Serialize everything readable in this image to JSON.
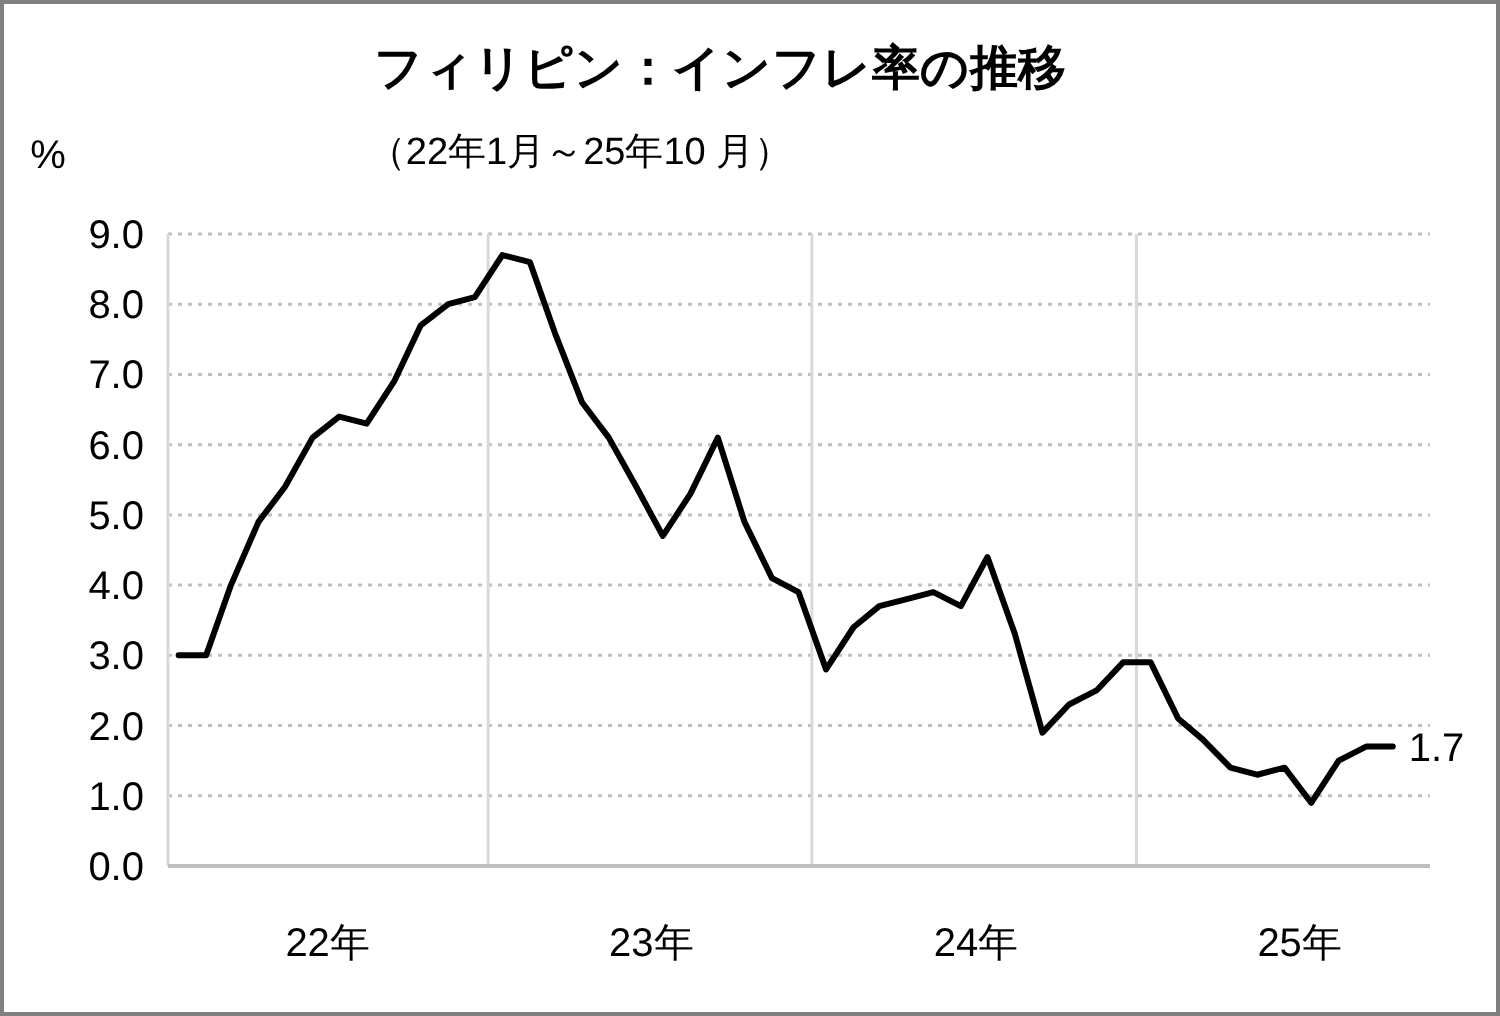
{
  "chart_data": {
    "type": "line",
    "title": "フィリピン：インフレ率の推移",
    "subtitle": "（22年1月～25年10 月）",
    "ylabel": "%",
    "x": [
      "2022-01",
      "2022-02",
      "2022-03",
      "2022-04",
      "2022-05",
      "2022-06",
      "2022-07",
      "2022-08",
      "2022-09",
      "2022-10",
      "2022-11",
      "2022-12",
      "2023-01",
      "2023-02",
      "2023-03",
      "2023-04",
      "2023-05",
      "2023-06",
      "2023-07",
      "2023-08",
      "2023-09",
      "2023-10",
      "2023-11",
      "2023-12",
      "2024-01",
      "2024-02",
      "2024-03",
      "2024-04",
      "2024-05",
      "2024-06",
      "2024-07",
      "2024-08",
      "2024-09",
      "2024-10",
      "2024-11",
      "2024-12",
      "2025-01",
      "2025-02",
      "2025-03",
      "2025-04",
      "2025-05",
      "2025-06",
      "2025-07",
      "2025-08",
      "2025-09",
      "2025-10"
    ],
    "series": [
      {
        "color": "#000000",
        "values": [
          3.0,
          3.0,
          4.0,
          4.9,
          5.4,
          6.1,
          6.4,
          6.3,
          6.9,
          7.7,
          8.0,
          8.1,
          8.7,
          8.6,
          7.6,
          6.6,
          6.1,
          5.4,
          4.7,
          5.3,
          6.1,
          4.9,
          4.1,
          3.9,
          2.8,
          3.4,
          3.7,
          3.8,
          3.9,
          3.7,
          4.4,
          3.3,
          1.9,
          2.3,
          2.5,
          2.9,
          2.9,
          2.1,
          1.8,
          1.4,
          1.3,
          1.4,
          0.9,
          1.5,
          1.7,
          1.7
        ]
      }
    ],
    "xlim": [
      "2021-12-20",
      "2025-11-12"
    ],
    "xticks": [
      {
        "value": "2022-06-18",
        "label": "22年"
      },
      {
        "value": "2023-06-18",
        "label": "23年"
      },
      {
        "value": "2024-06-18",
        "label": "24年"
      },
      {
        "value": "2025-06-18",
        "label": "25年"
      }
    ],
    "ylim": [
      0,
      9
    ],
    "yticks": [
      {
        "value": 0,
        "label": "0.0"
      },
      {
        "value": 1,
        "label": "1.0"
      },
      {
        "value": 2,
        "label": "2.0"
      },
      {
        "value": 3,
        "label": "3.0"
      },
      {
        "value": 4,
        "label": "4.0"
      },
      {
        "value": 5,
        "label": "5.0"
      },
      {
        "value": 6,
        "label": "6.0"
      },
      {
        "value": 7,
        "label": "7.0"
      },
      {
        "value": 8,
        "label": "8.0"
      },
      {
        "value": 9,
        "label": "9.0"
      }
    ],
    "grid": "y",
    "line_style": "solid",
    "marker": "none",
    "ref_lines": [
      {
        "axis": "x",
        "value": "2022-12-16",
        "color": "#d9d9d9"
      },
      {
        "axis": "x",
        "value": "2023-12-16",
        "color": "#d9d9d9"
      },
      {
        "axis": "x",
        "value": "2024-12-16",
        "color": "#d9d9d9"
      }
    ],
    "annotations": [
      {
        "text": "1.7",
        "x": "2025-10",
        "y": 1.7
      }
    ]
  }
}
